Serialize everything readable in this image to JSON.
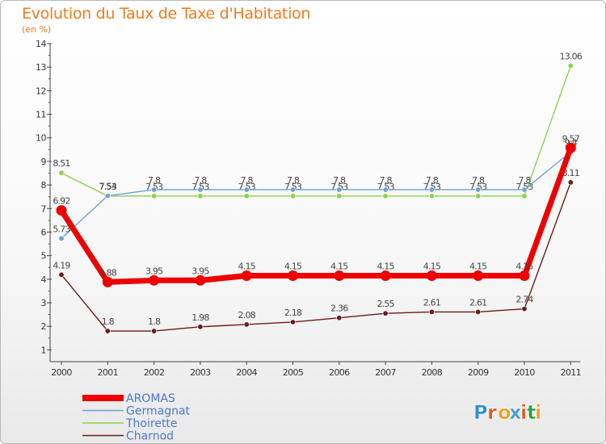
{
  "chart_data": {
    "type": "line",
    "title": "Evolution du Taux de Taxe d'Habitation",
    "subtitle": "(en %)",
    "x": [
      "2000",
      "2001",
      "2002",
      "2003",
      "2004",
      "2005",
      "2006",
      "2007",
      "2008",
      "2009",
      "2010",
      "2011"
    ],
    "ylim": [
      0.5,
      14
    ],
    "yticks": [
      "1",
      "2",
      "3",
      "4",
      "5",
      "6",
      "7",
      "8",
      "9",
      "10",
      "11",
      "12",
      "13",
      "14"
    ],
    "grid": false,
    "legend": "bottom-left",
    "series": [
      {
        "name": "Thoirette",
        "color": "#88d44b",
        "values": [
          8.51,
          7.53,
          7.53,
          7.53,
          7.53,
          7.53,
          7.53,
          7.53,
          7.53,
          7.53,
          7.53,
          13.06
        ],
        "labels": [
          "8.51",
          "7.53",
          "7.53",
          "7.53",
          "7.53",
          "7.53",
          "7.53",
          "7.53",
          "7.53",
          "7.53",
          "7.53",
          "13.06"
        ]
      },
      {
        "name": "Germagnat",
        "color": "#6fa0d8",
        "values": [
          5.73,
          7.54,
          7.8,
          7.8,
          7.8,
          7.8,
          7.8,
          7.8,
          7.8,
          7.8,
          7.8,
          9.4
        ],
        "labels": [
          "5.73",
          "7.54",
          "7.8",
          "7.8",
          "7.8",
          "7.8",
          "7.8",
          "7.8",
          "7.8",
          "7.8",
          "7.8",
          "9.4"
        ]
      },
      {
        "name": "Charnod",
        "color": "#6e1a1a",
        "values": [
          4.19,
          1.8,
          1.8,
          1.98,
          2.08,
          2.18,
          2.36,
          2.55,
          2.61,
          2.61,
          2.74,
          8.11
        ],
        "labels": [
          "4.19",
          "1.8",
          "1.8",
          "1.98",
          "2.08",
          "2.18",
          "2.36",
          "2.55",
          "2.61",
          "2.61",
          "2.74",
          "8.11"
        ]
      },
      {
        "name": "AROMAS",
        "color": "#ee0000",
        "values": [
          6.92,
          3.88,
          3.95,
          3.95,
          4.15,
          4.15,
          4.15,
          4.15,
          4.15,
          4.15,
          4.15,
          9.57
        ],
        "labels": [
          "6.92",
          "3.88",
          "3.95",
          "3.95",
          "4.15",
          "4.15",
          "4.15",
          "4.15",
          "4.15",
          "4.15",
          "4.15",
          "9.57"
        ]
      }
    ],
    "legend_order": [
      "AROMAS",
      "Germagnat",
      "Thoirette",
      "Charnod"
    ]
  },
  "logo": {
    "text": "Proxiti",
    "colors": [
      "#2e8fd0",
      "#e05a1e",
      "#f0a020",
      "#3a9ed8",
      "#e05a1e",
      "#27a045",
      "#f0a020"
    ]
  }
}
